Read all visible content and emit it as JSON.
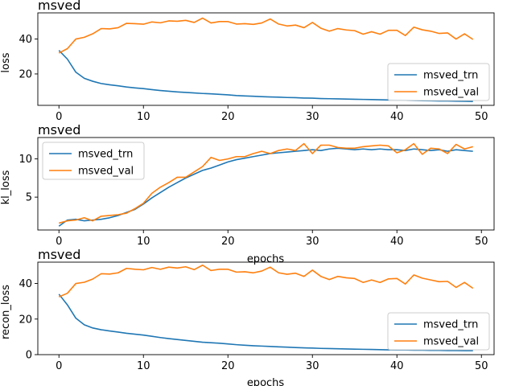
{
  "colors": {
    "trn": "#1f77b4",
    "val": "#ff7f0e"
  },
  "chart_data": [
    {
      "type": "line",
      "title": "msved",
      "xlabel": "",
      "ylabel": "loss",
      "xlim": [
        -2.5,
        51.5
      ],
      "ylim": [
        2.0,
        55.0
      ],
      "xticks": [
        0,
        10,
        20,
        30,
        40,
        50
      ],
      "yticks": [
        20,
        40
      ],
      "legend_loc": "lower-right",
      "x": [
        0,
        1,
        2,
        3,
        4,
        5,
        6,
        7,
        8,
        9,
        10,
        11,
        12,
        13,
        14,
        15,
        16,
        17,
        18,
        19,
        20,
        21,
        22,
        23,
        24,
        25,
        26,
        27,
        28,
        29,
        30,
        31,
        32,
        33,
        34,
        35,
        36,
        37,
        38,
        39,
        40,
        41,
        42,
        43,
        44,
        45,
        46,
        47,
        48,
        49
      ],
      "series": [
        {
          "name": "msved_trn",
          "color_key": "trn",
          "values": [
            33.5,
            28.5,
            21.0,
            17.5,
            15.8,
            14.5,
            13.8,
            13.2,
            12.5,
            12.0,
            11.6,
            11.0,
            10.5,
            10.1,
            9.7,
            9.4,
            9.1,
            8.8,
            8.6,
            8.3,
            8.0,
            7.6,
            7.4,
            7.2,
            7.0,
            6.8,
            6.7,
            6.5,
            6.4,
            6.2,
            6.1,
            5.9,
            5.8,
            5.7,
            5.6,
            5.5,
            5.4,
            5.3,
            5.2,
            5.1,
            5.0,
            4.9,
            4.8,
            4.7,
            4.6,
            4.5,
            4.5,
            4.4,
            4.3,
            4.2
          ]
        },
        {
          "name": "msved_val",
          "color_key": "val",
          "values": [
            32.0,
            34.5,
            40.0,
            41.0,
            43.0,
            46.0,
            45.8,
            46.5,
            49.0,
            48.8,
            48.5,
            49.8,
            49.3,
            50.4,
            50.2,
            50.7,
            49.5,
            52.0,
            49.2,
            50.0,
            50.0,
            48.6,
            48.8,
            48.4,
            49.2,
            51.5,
            48.6,
            47.5,
            48.0,
            46.5,
            49.5,
            46.2,
            44.5,
            46.0,
            45.2,
            44.8,
            42.8,
            44.2,
            42.8,
            45.0,
            45.0,
            42.0,
            46.8,
            45.3,
            44.5,
            43.2,
            43.5,
            40.0,
            43.0,
            39.8
          ]
        }
      ]
    },
    {
      "type": "line",
      "title": "msved",
      "xlabel": "epochs",
      "ylabel": "kl_loss",
      "xlim": [
        -2.5,
        51.5
      ],
      "ylim": [
        0.7,
        12.8
      ],
      "xticks": [
        0,
        10,
        20,
        30,
        40,
        50
      ],
      "yticks": [
        5,
        10
      ],
      "legend_loc": "upper-left",
      "x": [
        0,
        1,
        2,
        3,
        4,
        5,
        6,
        7,
        8,
        9,
        10,
        11,
        12,
        13,
        14,
        15,
        16,
        17,
        18,
        19,
        20,
        21,
        22,
        23,
        24,
        25,
        26,
        27,
        28,
        29,
        30,
        31,
        32,
        33,
        34,
        35,
        36,
        37,
        38,
        39,
        40,
        41,
        42,
        43,
        44,
        45,
        46,
        47,
        48,
        49
      ],
      "series": [
        {
          "name": "msved_trn",
          "color_key": "trn",
          "values": [
            1.2,
            2.0,
            2.1,
            1.9,
            2.0,
            2.1,
            2.3,
            2.6,
            3.0,
            3.4,
            4.1,
            4.9,
            5.6,
            6.3,
            6.9,
            7.5,
            8.0,
            8.5,
            8.8,
            9.2,
            9.6,
            9.9,
            10.1,
            10.3,
            10.5,
            10.7,
            10.8,
            10.9,
            11.0,
            11.1,
            11.2,
            11.1,
            11.3,
            11.4,
            11.3,
            11.2,
            11.3,
            11.2,
            11.3,
            11.2,
            11.2,
            11.1,
            11.3,
            11.2,
            11.1,
            11.2,
            11.0,
            11.2,
            11.1,
            11.0
          ]
        },
        {
          "name": "msved_val",
          "color_key": "val",
          "values": [
            1.6,
            1.9,
            2.0,
            2.3,
            1.9,
            2.5,
            2.6,
            2.7,
            2.9,
            3.5,
            4.2,
            5.5,
            6.3,
            6.9,
            7.6,
            7.6,
            8.3,
            9.0,
            10.2,
            9.8,
            10.0,
            10.3,
            10.3,
            10.7,
            11.0,
            10.7,
            11.1,
            11.3,
            11.1,
            12.0,
            10.7,
            11.8,
            11.8,
            11.5,
            11.4,
            11.4,
            11.6,
            11.7,
            11.8,
            11.7,
            10.8,
            11.2,
            12.0,
            10.6,
            11.4,
            11.3,
            10.7,
            11.9,
            11.3,
            11.6
          ]
        }
      ]
    },
    {
      "type": "line",
      "title": "msved",
      "xlabel": "epochs",
      "ylabel": "recon_loss",
      "xlim": [
        -2.5,
        51.5
      ],
      "ylim": [
        0.0,
        52.0
      ],
      "xticks": [
        0,
        10,
        20,
        30,
        40,
        50
      ],
      "yticks": [
        0,
        20,
        40
      ],
      "legend_loc": "lower-right",
      "x": [
        0,
        1,
        2,
        3,
        4,
        5,
        6,
        7,
        8,
        9,
        10,
        11,
        12,
        13,
        14,
        15,
        16,
        17,
        18,
        19,
        20,
        21,
        22,
        23,
        24,
        25,
        26,
        27,
        28,
        29,
        30,
        31,
        32,
        33,
        34,
        35,
        36,
        37,
        38,
        39,
        40,
        41,
        42,
        43,
        44,
        45,
        46,
        47,
        48,
        49
      ],
      "series": [
        {
          "name": "msved_trn",
          "color_key": "trn",
          "values": [
            34.0,
            28.0,
            20.5,
            16.8,
            15.0,
            14.0,
            13.3,
            12.7,
            12.0,
            11.5,
            11.0,
            10.3,
            9.6,
            9.0,
            8.5,
            8.0,
            7.5,
            7.0,
            6.7,
            6.4,
            6.0,
            5.6,
            5.3,
            5.0,
            4.8,
            4.6,
            4.4,
            4.2,
            4.0,
            3.8,
            3.7,
            3.5,
            3.4,
            3.3,
            3.2,
            3.1,
            3.0,
            2.9,
            2.8,
            2.7,
            2.6,
            2.6,
            2.5,
            2.5,
            2.4,
            2.4,
            2.3,
            2.3,
            2.2,
            2.2
          ]
        },
        {
          "name": "msved_val",
          "color_key": "val",
          "values": [
            32.5,
            34.5,
            40.0,
            40.7,
            42.5,
            45.5,
            45.3,
            46.0,
            48.5,
            48.0,
            47.7,
            49.0,
            48.0,
            49.2,
            48.7,
            49.4,
            47.8,
            50.3,
            47.3,
            48.0,
            48.0,
            46.4,
            46.6,
            46.0,
            47.0,
            49.2,
            46.0,
            45.2,
            45.8,
            44.0,
            47.5,
            44.0,
            42.2,
            44.0,
            43.2,
            42.8,
            40.6,
            42.0,
            40.6,
            42.6,
            42.8,
            39.7,
            44.8,
            43.0,
            42.0,
            41.0,
            41.2,
            37.8,
            40.6,
            37.3
          ]
        }
      ]
    }
  ]
}
